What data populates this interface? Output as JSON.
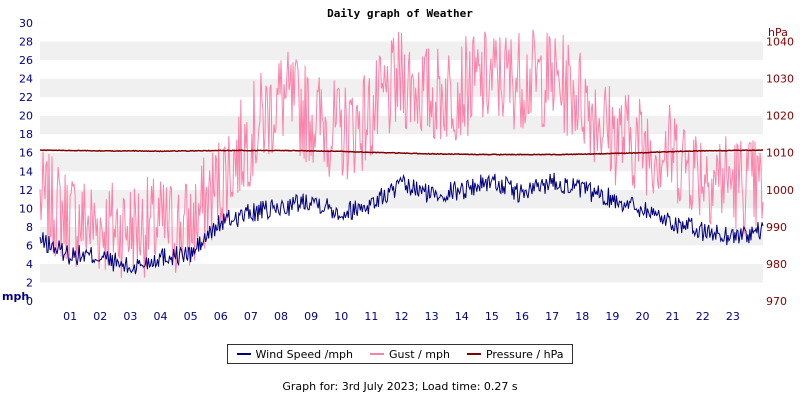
{
  "chart_data": {
    "type": "line",
    "title": "Daily graph of Weather",
    "left_axis": {
      "unit": "mph",
      "ylim": [
        0,
        30
      ],
      "ticks": [
        0,
        2,
        4,
        6,
        8,
        10,
        12,
        14,
        16,
        18,
        20,
        22,
        24,
        26,
        28,
        30
      ]
    },
    "right_axis": {
      "unit": "hPa",
      "ylim": [
        970,
        1045
      ],
      "ticks": [
        970,
        980,
        990,
        1000,
        1010,
        1020,
        1030,
        1040
      ]
    },
    "x_ticks": [
      "01",
      "02",
      "03",
      "04",
      "05",
      "06",
      "07",
      "08",
      "09",
      "10",
      "11",
      "12",
      "13",
      "14",
      "15",
      "16",
      "17",
      "18",
      "19",
      "20",
      "21",
      "22",
      "23"
    ],
    "x_hours": [
      0,
      1,
      2,
      3,
      4,
      5,
      6,
      7,
      8,
      9,
      10,
      11,
      12,
      13,
      14,
      15,
      16,
      17,
      18,
      19,
      20,
      21,
      22,
      23,
      24
    ],
    "series": [
      {
        "name": "Wind Speed /mph",
        "color": "#000080",
        "axis": "left",
        "values": [
          6.5,
          5.0,
          4.8,
          3.5,
          4.8,
          5.0,
          8.5,
          9.5,
          10.0,
          11.0,
          9.5,
          10.5,
          12.5,
          11.5,
          12.0,
          13.0,
          11.5,
          13.0,
          12.0,
          11.0,
          10.0,
          8.5,
          7.5,
          7.0,
          7.5
        ]
      },
      {
        "name": "Gust / mph",
        "color": "#ff80a8",
        "axis": "left",
        "values": [
          11,
          9,
          8,
          8,
          8,
          8,
          13,
          18,
          22,
          20,
          18,
          20,
          24,
          22,
          23,
          24,
          24,
          24,
          22,
          18,
          17,
          16,
          14,
          13,
          12
        ]
      },
      {
        "name": "Pressure / hPa",
        "color": "#800000",
        "axis": "right",
        "values": [
          1010.7,
          1010.6,
          1010.5,
          1010.5,
          1010.4,
          1010.5,
          1010.6,
          1010.6,
          1010.6,
          1010.5,
          1010.4,
          1010.1,
          1009.9,
          1009.7,
          1009.6,
          1009.5,
          1009.5,
          1009.5,
          1009.6,
          1009.8,
          1010.0,
          1010.3,
          1010.5,
          1010.6,
          1010.7
        ]
      }
    ],
    "grid": "horizontal bands"
  },
  "footer": "Graph for: 3rd July 2023; Load time: 0.27 s"
}
